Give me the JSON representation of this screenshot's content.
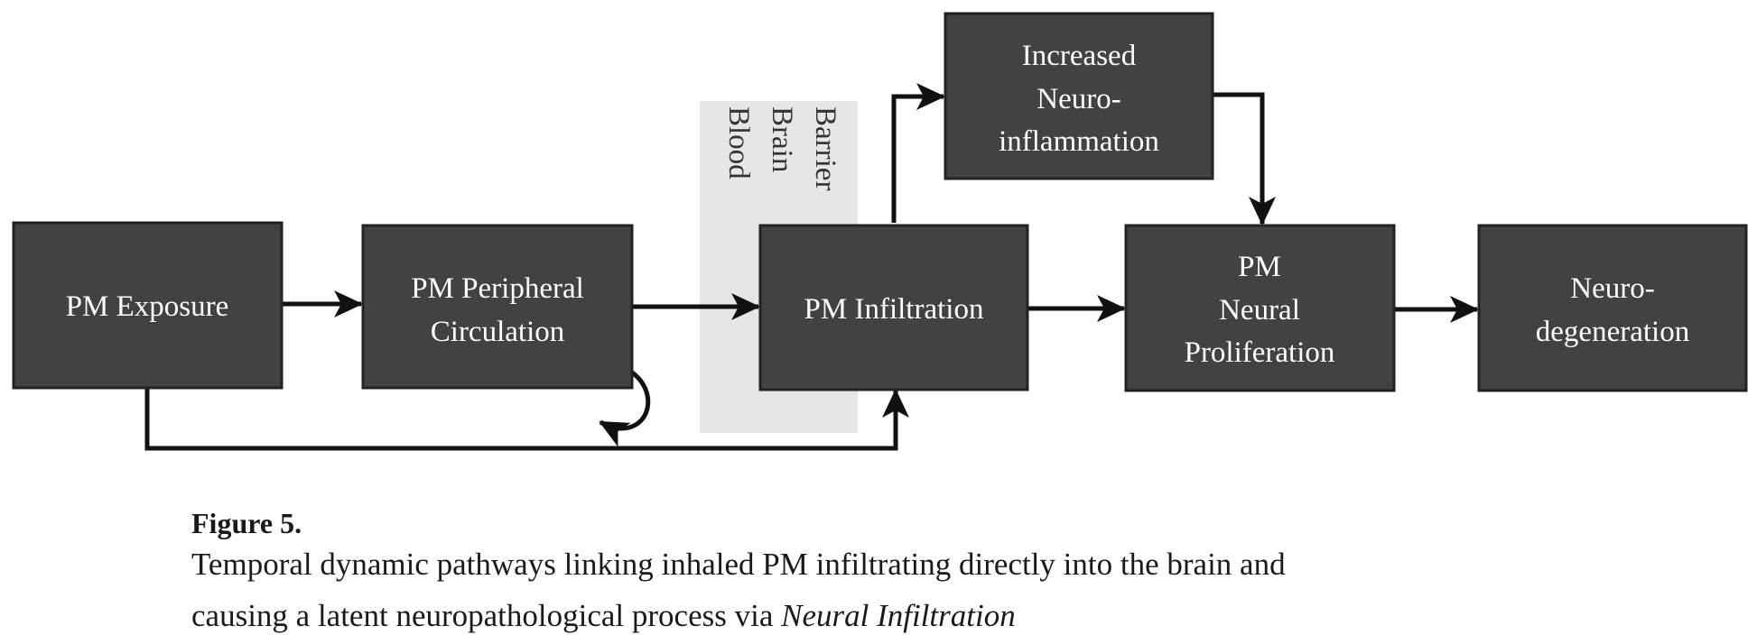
{
  "nodes": {
    "pm_exposure": [
      "PM Exposure"
    ],
    "peripheral_circulation": [
      "PM Peripheral",
      "Circulation"
    ],
    "infiltration": [
      "PM Infiltration"
    ],
    "neuroinflammation": [
      "Increased",
      "Neuro-",
      "inflammation"
    ],
    "neural_proliferation": [
      "PM",
      "Neural",
      "Proliferation"
    ],
    "neurodegeneration": [
      "Neuro-",
      "degeneration"
    ]
  },
  "blood_brain_barrier": [
    "Blood",
    "Brain",
    "Barrier"
  ],
  "caption": {
    "title": "Figure 5.",
    "line1": "Temporal dynamic pathways linking inhaled PM infiltrating directly into the brain and",
    "line2_prefix": "causing a latent neuropathological process via ",
    "line2_emphasis": "Neural Infiltration"
  },
  "colors": {
    "box_fill": "#424242",
    "box_stroke": "#222222",
    "arrow": "#111111",
    "barrier_band": "#e6e6e6"
  }
}
